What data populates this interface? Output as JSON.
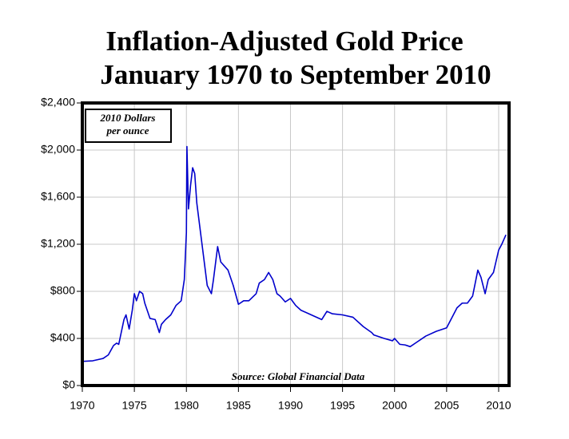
{
  "chart_data": {
    "type": "line",
    "title": [
      "Inflation-Adjusted Gold Price",
      "January 1970 to September 2010"
    ],
    "annotation": [
      "2010 Dollars",
      "per ounce"
    ],
    "source": "Source: Global Financial Data",
    "x": [
      1970.0,
      1971.0,
      1972.0,
      1972.5,
      1973.0,
      1973.3,
      1973.5,
      1974.0,
      1974.2,
      1974.5,
      1974.8,
      1975.0,
      1975.2,
      1975.5,
      1975.8,
      1976.0,
      1976.5,
      1977.0,
      1977.4,
      1977.6,
      1978.0,
      1978.5,
      1979.0,
      1979.5,
      1979.8,
      1980.0,
      1980.05,
      1980.2,
      1980.4,
      1980.6,
      1980.8,
      1981.0,
      1981.5,
      1982.0,
      1982.4,
      1982.6,
      1983.0,
      1983.3,
      1984.0,
      1984.5,
      1985.0,
      1985.5,
      1986.0,
      1986.7,
      1987.0,
      1987.5,
      1987.9,
      1988.3,
      1988.7,
      1989.0,
      1989.5,
      1990.0,
      1990.5,
      1991.0,
      1992.0,
      1993.0,
      1993.5,
      1994.0,
      1995.0,
      1996.0,
      1997.0,
      1997.8,
      1998.0,
      1999.0,
      1999.8,
      2000.0,
      2000.5,
      2001.0,
      2001.5,
      2002.0,
      2003.0,
      2004.0,
      2005.0,
      2006.0,
      2006.5,
      2007.0,
      2007.5,
      2008.0,
      2008.3,
      2008.7,
      2009.0,
      2009.5,
      2010.0,
      2010.3,
      2010.7
    ],
    "series": [
      {
        "color": "#0000cc",
        "values": [
          205,
          210,
          230,
          260,
          340,
          360,
          350,
          560,
          600,
          480,
          640,
          780,
          720,
          800,
          780,
          700,
          570,
          560,
          450,
          520,
          560,
          600,
          680,
          720,
          900,
          1300,
          2030,
          1500,
          1700,
          1850,
          1800,
          1550,
          1200,
          850,
          780,
          900,
          1180,
          1050,
          980,
          850,
          690,
          720,
          720,
          780,
          870,
          900,
          960,
          900,
          780,
          760,
          710,
          740,
          680,
          640,
          600,
          560,
          630,
          610,
          600,
          580,
          500,
          450,
          430,
          400,
          380,
          400,
          350,
          345,
          330,
          360,
          420,
          460,
          490,
          660,
          700,
          700,
          760,
          980,
          920,
          780,
          900,
          960,
          1150,
          1200,
          1280
        ]
      }
    ],
    "xlim": [
      1970,
      2011
    ],
    "xticks": [
      1970,
      1975,
      1980,
      1985,
      1990,
      1995,
      2000,
      2005,
      2010
    ],
    "ylim": [
      0,
      2400
    ],
    "yticks": [
      {
        "value": 0,
        "label": "$0"
      },
      {
        "value": 400,
        "label": "$400"
      },
      {
        "value": 800,
        "label": "$800"
      },
      {
        "value": 1200,
        "label": "$1,200"
      },
      {
        "value": 1600,
        "label": "$1,600"
      },
      {
        "value": 2000,
        "label": "$2,000"
      },
      {
        "value": 2400,
        "label": "$2,400"
      }
    ],
    "grid": true
  }
}
